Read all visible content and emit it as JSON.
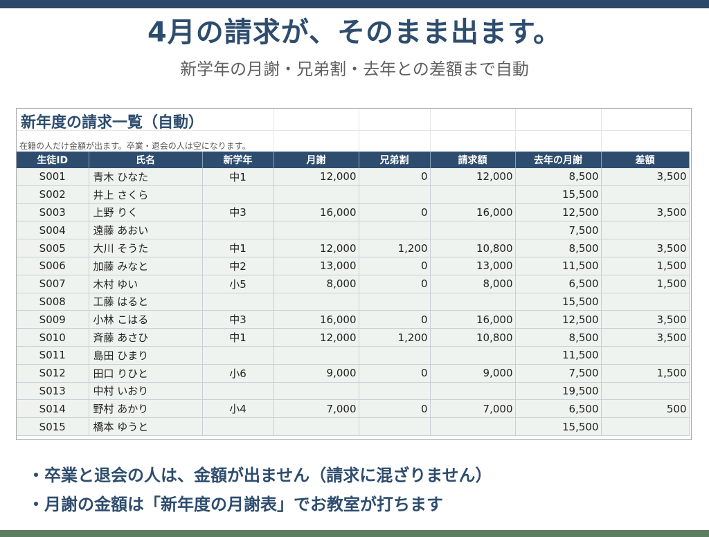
{
  "title": "4月の請求が、そのまま出ます。",
  "subtitle": "新学年の月謝・兄弟割・去年との差額まで自動",
  "sheet": {
    "title": "新年度の請求一覧（自動）",
    "note": "在籍の人だけ金額が出ます。卒業・退会の人は空になります。",
    "headers": [
      "生徒ID",
      "氏名",
      "新学年",
      "月謝",
      "兄弟割",
      "請求額",
      "去年の月謝",
      "差額"
    ],
    "rows": [
      [
        "S001",
        "青木 ひなた",
        "中1",
        "12,000",
        "0",
        "12,000",
        "8,500",
        "3,500"
      ],
      [
        "S002",
        "井上 さくら",
        "",
        "",
        "",
        "",
        "15,500",
        ""
      ],
      [
        "S003",
        "上野 りく",
        "中3",
        "16,000",
        "0",
        "16,000",
        "12,500",
        "3,500"
      ],
      [
        "S004",
        "遠藤 あおい",
        "",
        "",
        "",
        "",
        "7,500",
        ""
      ],
      [
        "S005",
        "大川 そうた",
        "中1",
        "12,000",
        "1,200",
        "10,800",
        "8,500",
        "3,500"
      ],
      [
        "S006",
        "加藤 みなと",
        "中2",
        "13,000",
        "0",
        "13,000",
        "11,500",
        "1,500"
      ],
      [
        "S007",
        "木村 ゆい",
        "小5",
        "8,000",
        "0",
        "8,000",
        "6,500",
        "1,500"
      ],
      [
        "S008",
        "工藤 はると",
        "",
        "",
        "",
        "",
        "15,500",
        ""
      ],
      [
        "S009",
        "小林 こはる",
        "中3",
        "16,000",
        "0",
        "16,000",
        "12,500",
        "3,500"
      ],
      [
        "S010",
        "斉藤 あさひ",
        "中1",
        "12,000",
        "1,200",
        "10,800",
        "8,500",
        "3,500"
      ],
      [
        "S011",
        "島田 ひまり",
        "",
        "",
        "",
        "",
        "11,500",
        ""
      ],
      [
        "S012",
        "田口 りひと",
        "小6",
        "9,000",
        "0",
        "9,000",
        "7,500",
        "1,500"
      ],
      [
        "S013",
        "中村 いおり",
        "",
        "",
        "",
        "",
        "19,500",
        ""
      ],
      [
        "S014",
        "野村 あかり",
        "小4",
        "7,000",
        "0",
        "7,000",
        "6,500",
        "500"
      ],
      [
        "S015",
        "橋本 ゆうと",
        "",
        "",
        "",
        "",
        "15,500",
        ""
      ]
    ]
  },
  "bullets": [
    "・卒業と退会の人は、金額が出ません（請求に混ざりません）",
    "・月謝の金額は「新年度の月謝表」でお教室が打ちます"
  ],
  "colors": {
    "accent": "#2e4d6e",
    "header_bg": "#2e4d6e",
    "cell_bg": "#eef3ef",
    "bottom_bar": "#5f7d63"
  }
}
